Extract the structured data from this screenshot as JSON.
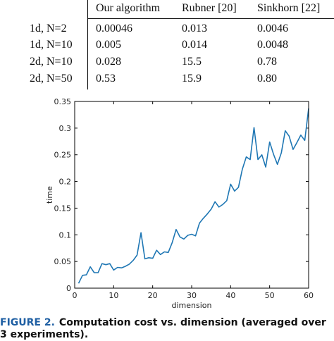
{
  "table": {
    "headers": [
      "",
      "Our algorithm",
      "Rubner [20]",
      "Sinkhorn [22]"
    ],
    "rows": [
      [
        "1d, N=2",
        "0.00046",
        "0.013",
        "0.0046"
      ],
      [
        "1d, N=10",
        "0.005",
        "0.014",
        "0.0048"
      ],
      [
        "2d, N=10",
        "0.028",
        "15.5",
        "0.78"
      ],
      [
        "2d, N=50",
        "0.53",
        "15.9",
        "0.80"
      ]
    ]
  },
  "chart_data": {
    "type": "line",
    "title": "",
    "xlabel": "dimension",
    "ylabel": "time",
    "xlim": [
      0,
      60
    ],
    "ylim": [
      0,
      0.35
    ],
    "xticks": [
      0,
      10,
      20,
      30,
      40,
      50,
      60
    ],
    "yticks": [
      0,
      0.05,
      0.1,
      0.15,
      0.2,
      0.25,
      0.3,
      0.35
    ],
    "grid": false,
    "line_color": "#1f77b4",
    "series": [
      {
        "x": [
          1,
          2,
          3,
          4,
          5,
          6,
          7,
          8,
          9,
          10,
          11,
          12,
          13,
          14,
          15,
          16,
          17,
          18,
          19,
          20,
          21,
          22,
          23,
          24,
          25,
          26,
          27,
          28,
          29,
          30,
          31,
          32,
          33,
          34,
          35,
          36,
          37,
          38,
          39,
          40,
          41,
          42,
          43,
          44,
          45,
          46,
          47,
          48,
          49,
          50,
          51,
          52,
          53,
          54,
          55,
          56,
          57,
          58,
          59,
          60
        ],
        "values": [
          0.009,
          0.024,
          0.025,
          0.04,
          0.029,
          0.029,
          0.046,
          0.044,
          0.046,
          0.034,
          0.039,
          0.038,
          0.041,
          0.045,
          0.052,
          0.062,
          0.104,
          0.055,
          0.057,
          0.056,
          0.071,
          0.063,
          0.068,
          0.067,
          0.085,
          0.11,
          0.096,
          0.092,
          0.099,
          0.101,
          0.098,
          0.122,
          0.131,
          0.139,
          0.148,
          0.162,
          0.152,
          0.157,
          0.164,
          0.195,
          0.182,
          0.189,
          0.223,
          0.246,
          0.241,
          0.301,
          0.241,
          0.25,
          0.227,
          0.274,
          0.251,
          0.232,
          0.254,
          0.295,
          0.285,
          0.26,
          0.273,
          0.287,
          0.277,
          0.337
        ]
      }
    ]
  },
  "caption": {
    "label": "FIGURE 2.",
    "text": "Computation cost vs. dimension (averaged over 3 experiments)."
  }
}
